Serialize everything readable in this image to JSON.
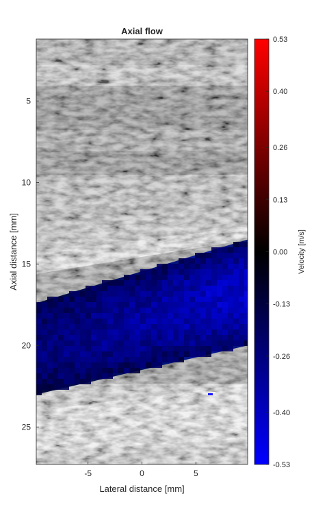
{
  "chart_data": {
    "type": "heatmap",
    "title": "Axial flow",
    "xlabel": "Lateral distance [mm]",
    "ylabel": "Axial distance [mm]",
    "colorbar_label": "Velocity [m/s]",
    "xlim": [
      -9.8,
      9.8
    ],
    "ylim": [
      1.2,
      27.3
    ],
    "y_reversed": true,
    "x_ticks": [
      -5,
      0,
      5
    ],
    "y_ticks": [
      5,
      10,
      15,
      20,
      25
    ],
    "clim": [
      -0.53,
      0.53
    ],
    "colorbar_ticks": [
      "0.53",
      "0.40",
      "0.26",
      "0.13",
      "0.00",
      "-0.13",
      "-0.26",
      "-0.40",
      "-0.53"
    ],
    "background": "B-mode grayscale speckle",
    "flow_region": {
      "upper_boundary": {
        "x": [
          -9.8,
          9.8
        ],
        "y": [
          17.4,
          13.5
        ]
      },
      "lower_boundary": {
        "x": [
          -9.8,
          9.8
        ],
        "y": [
          23.0,
          20.0
        ]
      },
      "velocity_range": [
        -0.5,
        -0.02
      ]
    },
    "colors": {
      "negative_extreme": "#0000ff",
      "zero": "#000000",
      "positive_extreme": "#ff0000"
    }
  }
}
